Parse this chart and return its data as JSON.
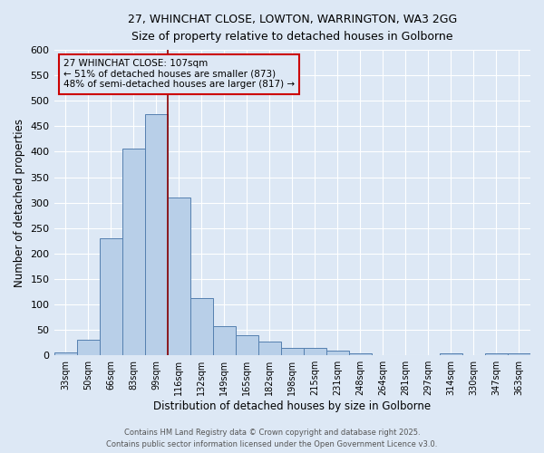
{
  "title_line1": "27, WHINCHAT CLOSE, LOWTON, WARRINGTON, WA3 2GG",
  "title_line2": "Size of property relative to detached houses in Golborne",
  "xlabel": "Distribution of detached houses by size in Golborne",
  "ylabel": "Number of detached properties",
  "bar_color": "#b8cfe8",
  "bar_edge_color": "#5580b0",
  "background_color": "#dde8f5",
  "grid_color": "#ffffff",
  "categories": [
    "33sqm",
    "50sqm",
    "66sqm",
    "83sqm",
    "99sqm",
    "116sqm",
    "132sqm",
    "149sqm",
    "165sqm",
    "182sqm",
    "198sqm",
    "215sqm",
    "231sqm",
    "248sqm",
    "264sqm",
    "281sqm",
    "297sqm",
    "314sqm",
    "330sqm",
    "347sqm",
    "363sqm"
  ],
  "values": [
    5,
    30,
    230,
    407,
    473,
    310,
    112,
    57,
    40,
    27,
    15,
    15,
    10,
    4,
    0,
    0,
    0,
    4,
    0,
    4,
    4
  ],
  "ylim": [
    0,
    600
  ],
  "yticks": [
    0,
    50,
    100,
    150,
    200,
    250,
    300,
    350,
    400,
    450,
    500,
    550,
    600
  ],
  "vline_x": 4.5,
  "vline_color": "#8b0000",
  "annotation_text": "27 WHINCHAT CLOSE: 107sqm\n← 51% of detached houses are smaller (873)\n48% of semi-detached houses are larger (817) →",
  "annotation_box_edge": "#cc0000",
  "footnote1": "Contains HM Land Registry data © Crown copyright and database right 2025.",
  "footnote2": "Contains public sector information licensed under the Open Government Licence v3.0."
}
